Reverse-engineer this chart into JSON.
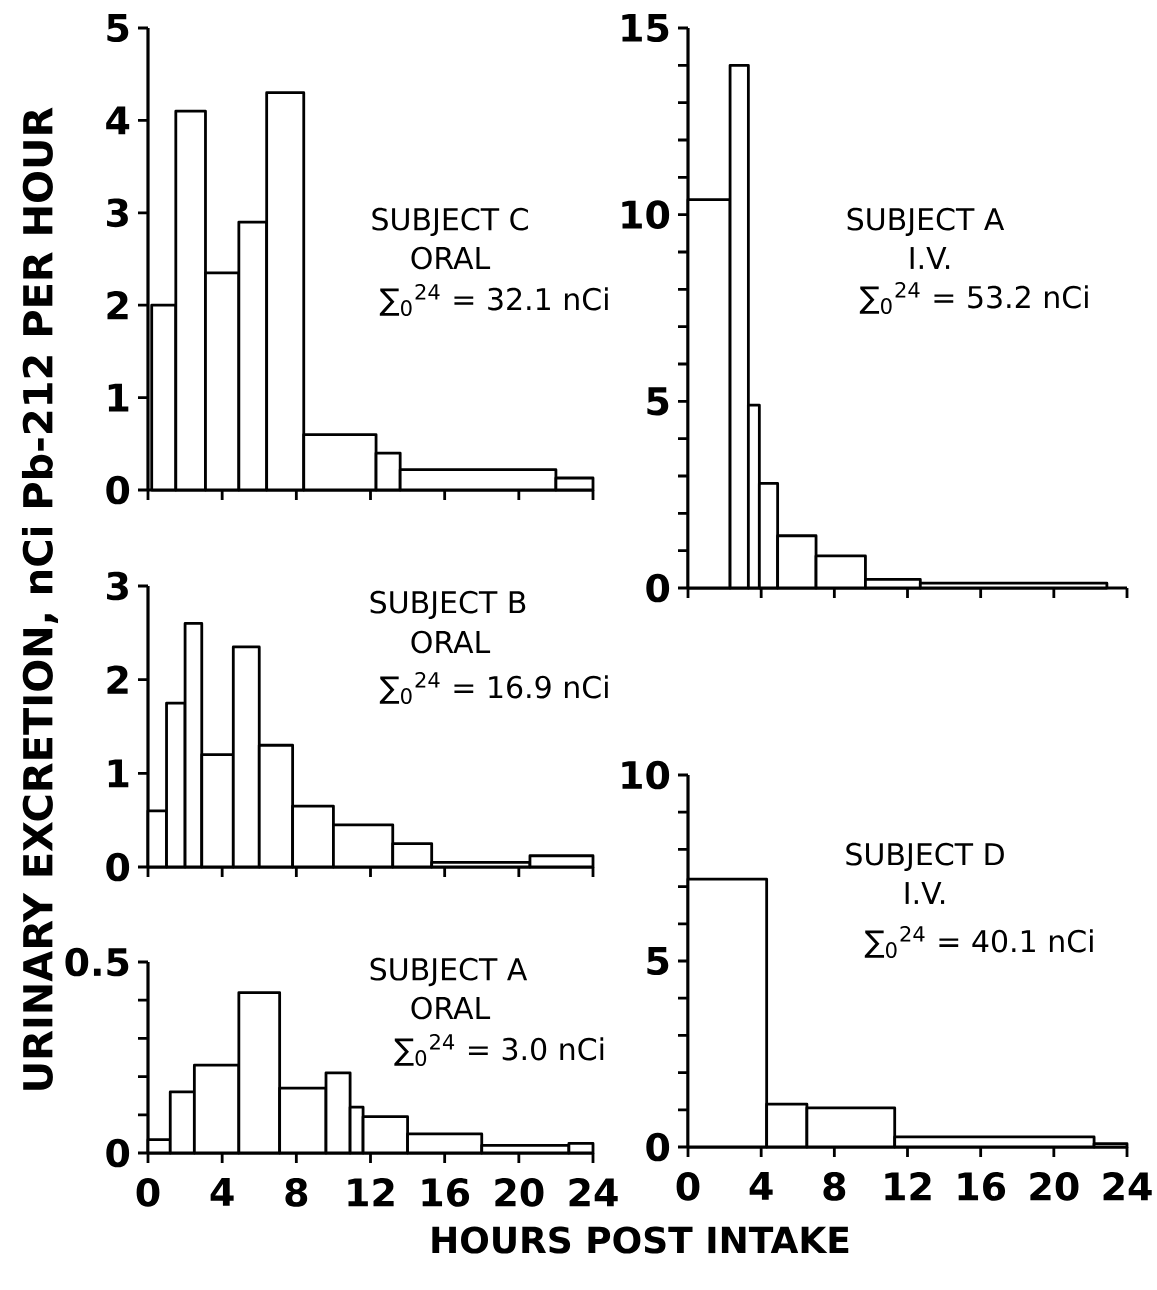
{
  "chart_data": [
    {
      "type": "histogram",
      "title": "SUBJECT C",
      "subtitle": "ORAL",
      "annotations": [
        "∑$_{0}$$^{24}$ = 32.1 nCi"
      ],
      "ylabel": "URINARY EXCRETION, nCi Pb-212 PER HOUR",
      "bins": [
        0.2,
        1.5,
        3.1,
        4.9,
        6.4,
        8.4,
        12.3,
        13.6,
        22.0,
        24
      ],
      "values": [
        2.0,
        4.1,
        2.35,
        2.9,
        4.3,
        0.6,
        0.4,
        0.22,
        0.13
      ],
      "color": "#000000",
      "xlim": [
        0,
        24
      ],
      "ylim": [
        0,
        5
      ],
      "xticks": [
        0,
        4,
        8,
        12,
        16,
        20,
        24
      ],
      "yticks": [
        0,
        1,
        2,
        3,
        4,
        5
      ],
      "tick_labels": "y"
    },
    {
      "type": "histogram",
      "title": "SUBJECT A",
      "subtitle": "I.V.",
      "annotations": [
        "∑$_{0}$$^{24}$ = 53.2 nCi"
      ],
      "bins": [
        0,
        2.3,
        3.3,
        3.9,
        4.9,
        7.0,
        9.7,
        12.7,
        22.9
      ],
      "values": [
        10.4,
        14.0,
        4.9,
        2.8,
        1.4,
        0.86,
        0.23,
        0.13
      ],
      "color": "#000000",
      "xlim": [
        0,
        24
      ],
      "ylim": [
        0,
        15
      ],
      "xticks": [
        0,
        4,
        8,
        12,
        16,
        20,
        24
      ],
      "yticks": [
        0,
        {
          "value": 1,
          "label": null
        },
        {
          "value": 2,
          "label": null
        },
        {
          "value": 3,
          "label": null
        },
        {
          "value": 4,
          "label": null
        },
        5,
        {
          "value": 6,
          "label": null
        },
        {
          "value": 7,
          "label": null
        },
        {
          "value": 8,
          "label": null
        },
        {
          "value": 9,
          "label": null
        },
        10,
        {
          "value": 11,
          "label": null
        },
        {
          "value": 12,
          "label": null
        },
        {
          "value": 13,
          "label": null
        },
        {
          "value": 14,
          "label": null
        },
        15
      ],
      "tick_labels": "y"
    },
    {
      "type": "histogram",
      "title": "SUBJECT B",
      "subtitle": "ORAL",
      "annotations": [
        "∑$_{0}$$^{24}$ = 16.9 nCi"
      ],
      "bins": [
        0,
        1.0,
        2.0,
        2.9,
        4.6,
        6.0,
        7.8,
        10.0,
        13.2,
        15.3,
        20.6,
        24
      ],
      "values": [
        0.6,
        1.75,
        2.6,
        1.2,
        2.35,
        1.3,
        0.65,
        0.45,
        0.25,
        0.05,
        0.12
      ],
      "color": "#000000",
      "xlim": [
        0,
        24
      ],
      "ylim": [
        0,
        3
      ],
      "xticks": [
        0,
        4,
        8,
        12,
        16,
        20,
        24
      ],
      "yticks": [
        0,
        1,
        2,
        3
      ],
      "tick_labels": "y"
    },
    {
      "type": "histogram",
      "title": "SUBJECT D",
      "subtitle": "I.V.",
      "annotations": [
        "∑$_{0}$$^{24}$ = 40.1 nCi"
      ],
      "bins": [
        0,
        4.3,
        6.5,
        11.3,
        22.2,
        24
      ],
      "values": [
        7.2,
        1.15,
        1.05,
        0.27,
        0.09
      ],
      "color": "#000000",
      "xlim": [
        0,
        24
      ],
      "ylim": [
        0,
        10
      ],
      "xticks": [
        0,
        4,
        8,
        12,
        16,
        20,
        24
      ],
      "yticks": [
        0,
        {
          "value": 1,
          "label": null
        },
        {
          "value": 2,
          "label": null
        },
        {
          "value": 3,
          "label": null
        },
        {
          "value": 4,
          "label": null
        },
        5,
        {
          "value": 6,
          "label": null
        },
        {
          "value": 7,
          "label": null
        },
        {
          "value": 8,
          "label": null
        },
        {
          "value": 9,
          "label": null
        },
        10
      ]
    },
    {
      "type": "histogram",
      "title": "SUBJECT A",
      "subtitle": "ORAL",
      "annotations": [
        "∑$_{0}$$^{24}$ = 3.0 nCi"
      ],
      "xlabel": "HOURS POST INTAKE",
      "bins": [
        0,
        1.2,
        2.5,
        4.9,
        7.1,
        9.6,
        10.9,
        11.6,
        14.0,
        18.0,
        22.7,
        24
      ],
      "values": [
        0.035,
        0.16,
        0.23,
        0.42,
        0.17,
        0.21,
        0.12,
        0.095,
        0.05,
        0.02,
        0.025
      ],
      "color": "#000000",
      "xlim": [
        0,
        24
      ],
      "ylim": [
        0,
        0.5
      ],
      "xticks": [
        0,
        4,
        8,
        12,
        16,
        20,
        24
      ],
      "yticks": [
        0,
        {
          "value": 0.1,
          "label": null
        },
        {
          "value": 0.2,
          "label": null
        },
        {
          "value": 0.3,
          "label": null
        },
        {
          "value": 0.4,
          "label": null
        },
        {
          "value": 0.5,
          "label": "0.5"
        }
      ]
    }
  ]
}
